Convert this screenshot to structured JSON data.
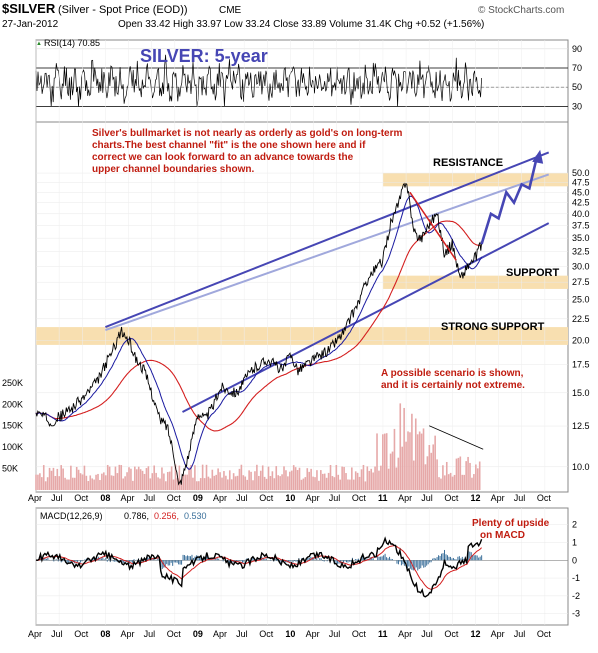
{
  "header": {
    "symbol": "$SILVER",
    "description": "(Silver - Spot Price (EOD))",
    "exchange": "CME",
    "watermark": "© StockCharts.com",
    "date": "27-Jan-2012",
    "quote": "Open 33.42  High 33.97  Low 33.24  Close 33.89  Volume 31.4K  Chg +0.52 (+1.56%)",
    "up_arrow": "▲"
  },
  "rsi_panel": {
    "label": "RSI(14) 70.85",
    "ticks": [
      "90",
      "70",
      "50",
      "30"
    ],
    "tick_values": [
      90,
      70,
      50,
      30
    ],
    "overbought": 70,
    "oversold": 30,
    "midline": 50
  },
  "price_panel": {
    "title": "SILVER: 5-year",
    "commentary": [
      "Silver's bullmarket is not nearly as orderly as gold's on long-term",
      "charts.The best channel \"fit\" is the one shown here and if",
      "correct we can look forward to an advance towards the",
      "upper channel boundaries shown."
    ],
    "scenario_note": [
      "A possible scenario is shown,",
      "and it is certainly not extreme."
    ],
    "zones": [
      {
        "label": "RESISTANCE",
        "low": 46.5,
        "high": 50.0
      },
      {
        "label": "SUPPORT",
        "low": 26.5,
        "high": 28.5
      },
      {
        "label": "STRONG SUPPORT",
        "low": 19.5,
        "high": 21.5
      }
    ],
    "ticks": [
      "50.0",
      "47.5",
      "45.0",
      "42.5",
      "40.0",
      "37.5",
      "35.0",
      "32.5",
      "30.0",
      "27.5",
      "25.0",
      "22.5",
      "20.0",
      "17.5",
      "15.0",
      "12.5",
      "10.0"
    ],
    "tick_values": [
      50,
      47.5,
      45,
      42.5,
      40,
      37.5,
      35,
      32.5,
      30,
      27.5,
      25,
      22.5,
      20,
      17.5,
      15,
      12.5,
      10
    ],
    "volume_ticks": [
      "250K",
      "200K",
      "150K",
      "100K",
      "50K"
    ],
    "volume_tick_values": [
      250,
      200,
      150,
      100,
      50
    ]
  },
  "macd_panel": {
    "label_name": "MACD(12,26,9)",
    "label_macd": "0.786,",
    "label_signal": "0.256,",
    "label_hist": "0.530",
    "note": [
      "Plenty of upside",
      "on MACD"
    ],
    "ticks": [
      "2",
      "1",
      "0",
      "-1",
      "-2",
      "-3"
    ],
    "tick_values": [
      2,
      1,
      0,
      -1,
      -2,
      -3
    ]
  },
  "x_axis": {
    "labels": [
      "Apr",
      "Jul",
      "Oct",
      "08",
      "Apr",
      "Jul",
      "Oct",
      "09",
      "Apr",
      "Jul",
      "Oct",
      "10",
      "Apr",
      "Jul",
      "Oct",
      "11",
      "Apr",
      "Jul",
      "Oct",
      "12",
      "Apr",
      "Jul",
      "Oct"
    ],
    "months_from_start": [
      0,
      3,
      6,
      9,
      12,
      15,
      18,
      21,
      24,
      27,
      30,
      33,
      36,
      39,
      42,
      45,
      48,
      51,
      54,
      57,
      60,
      63,
      66
    ]
  },
  "colors": {
    "price": "#000000",
    "ma_short": "#1a1aa0",
    "ma_long": "#d42020",
    "channel": "#4646b4",
    "channel_light": "#a0a8dc",
    "zone_fill": "#f8dfb0",
    "annotation_red": "#c01c10",
    "title_blue": "#4646b4",
    "volume_bar": "#e6a8a8",
    "macd_hist": "#3a6f9a"
  },
  "chart_data": {
    "type": "line",
    "title": "SILVER: 5-year",
    "x_unit": "month index (0 = Apr 2007)",
    "y_scale": "log",
    "ylim": [
      9,
      58
    ],
    "series": [
      {
        "name": "$SILVER",
        "x": [
          0,
          2,
          4,
          6,
          8,
          10,
          11,
          12,
          13,
          14,
          15,
          16,
          17,
          18,
          18.5,
          19,
          20,
          21,
          22,
          23,
          24,
          26,
          28,
          30,
          32,
          33,
          34,
          36,
          38,
          40,
          42,
          43,
          44,
          45,
          46,
          47,
          48,
          49,
          50,
          51,
          52,
          53,
          54,
          55,
          56,
          57,
          57.8
        ],
        "values": [
          13.5,
          12.8,
          13.5,
          14.5,
          16,
          19,
          21.0,
          20,
          18,
          17,
          15,
          13,
          12.5,
          10.5,
          9.0,
          9.5,
          11,
          13.5,
          13,
          14,
          15.5,
          15,
          17,
          18,
          17,
          18.5,
          17.0,
          18,
          19,
          21,
          25,
          28,
          29.5,
          31,
          38,
          42,
          48.5,
          36,
          35,
          38,
          40,
          32,
          34,
          28,
          30,
          31.5,
          33.89
        ]
      },
      {
        "name": "Scenario projection",
        "x": [
          57.8,
          59,
          60,
          61,
          62,
          63,
          64,
          65
        ],
        "values": [
          33.89,
          40,
          39,
          45,
          42.5,
          47,
          46,
          55
        ]
      }
    ],
    "channel": {
      "upper": {
        "x": [
          9,
          66.5
        ],
        "values": [
          21.5,
          56
        ]
      },
      "lower": {
        "x": [
          19,
          66.5
        ],
        "values": [
          13.5,
          38
        ]
      }
    }
  }
}
